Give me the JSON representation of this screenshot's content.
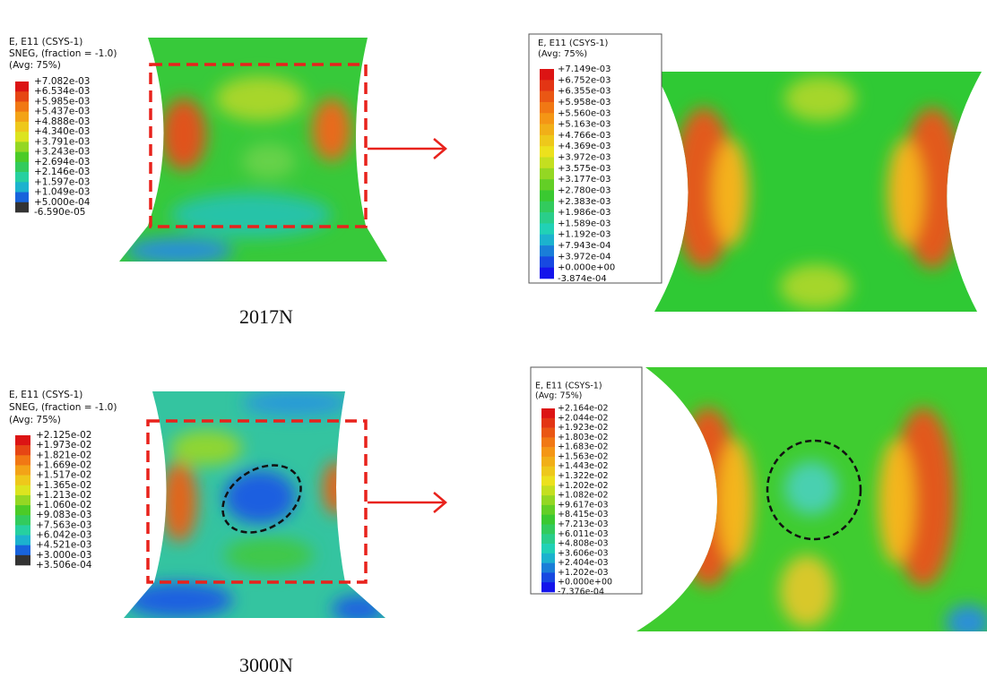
{
  "panels": [
    {
      "legend": {
        "title_lines": [
          "E, E11 (CSYS-1)",
          "SNEG, (fraction = -1.0)",
          "(Avg: 75%)"
        ],
        "labels": [
          "+7.082e-03",
          "+6.534e-03",
          "+5.985e-03",
          "+5.437e-03",
          "+4.888e-03",
          "+4.340e-03",
          "+3.791e-03",
          "+3.243e-03",
          "+2.694e-03",
          "+2.146e-03",
          "+1.597e-03",
          "+1.049e-03",
          "+5.000e-04",
          "-6.590e-05"
        ]
      }
    },
    {
      "legend": {
        "title_lines": [
          "E, E11 (CSYS-1)",
          "(Avg: 75%)"
        ],
        "labels": [
          "+7.149e-03",
          "+6.752e-03",
          "+6.355e-03",
          "+5.958e-03",
          "+5.560e-03",
          "+5.163e-03",
          "+4.766e-03",
          "+4.369e-03",
          "+3.972e-03",
          "+3.575e-03",
          "+3.177e-03",
          "+2.780e-03",
          "+2.383e-03",
          "+1.986e-03",
          "+1.589e-03",
          "+1.192e-03",
          "+7.943e-04",
          "+3.972e-04",
          "+0.000e+00",
          "-3.874e-04"
        ]
      }
    },
    {
      "legend": {
        "title_lines": [
          "E, E11 (CSYS-1)",
          "SNEG, (fraction = -1.0)",
          "(Avg: 75%)"
        ],
        "labels": [
          "+2.125e-02",
          "+1.973e-02",
          "+1.821e-02",
          "+1.669e-02",
          "+1.517e-02",
          "+1.365e-02",
          "+1.213e-02",
          "+1.060e-02",
          "+9.083e-03",
          "+7.563e-03",
          "+6.042e-03",
          "+4.521e-03",
          "+3.000e-03",
          "+3.506e-04"
        ]
      }
    },
    {
      "legend": {
        "title_lines": [
          "E, E11 (CSYS-1)",
          "(Avg: 75%)"
        ],
        "labels": [
          "+2.164e-02",
          "+2.044e-02",
          "+1.923e-02",
          "+1.803e-02",
          "+1.683e-02",
          "+1.563e-02",
          "+1.443e-02",
          "+1.322e-02",
          "+1.202e-02",
          "+1.082e-02",
          "+9.617e-03",
          "+8.415e-03",
          "+7.213e-03",
          "+6.011e-03",
          "+4.808e-03",
          "+3.606e-03",
          "+2.404e-03",
          "+1.202e-03",
          "+0.000e+00",
          "-7.376e-04"
        ]
      }
    }
  ],
  "captions": [
    "2017N",
    "3000N"
  ]
}
